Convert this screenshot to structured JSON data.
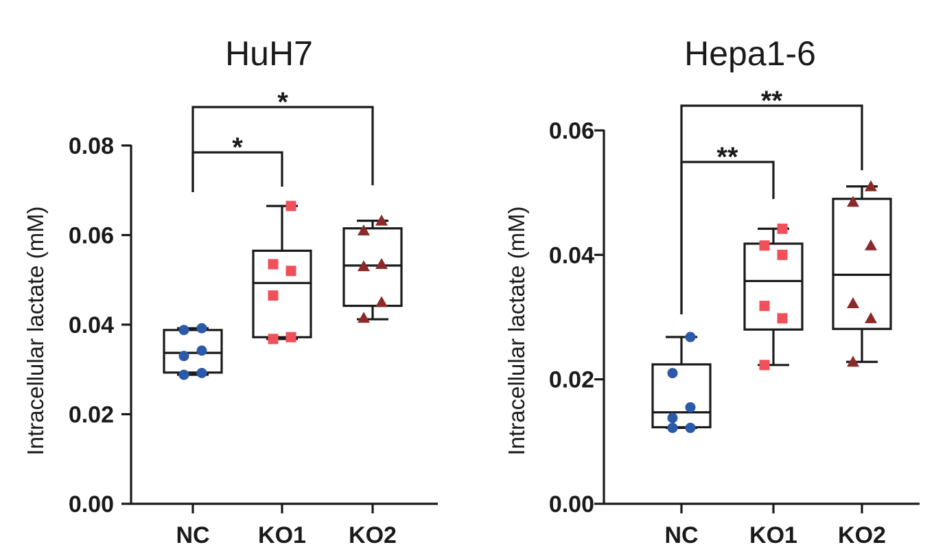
{
  "chart_data": [
    {
      "type": "box",
      "title": "HuH7",
      "ylabel": "Intracellular lactate (mM)",
      "xlabel": "",
      "ylim": [
        0,
        0.08
      ],
      "yticks": [
        "0.00",
        "0.02",
        "0.04",
        "0.06",
        "0.08"
      ],
      "categories": [
        "NC",
        "KO1",
        "KO2"
      ],
      "marker_colors": [
        "#2a5aa8",
        "#f0505a",
        "#8b2a2a"
      ],
      "marker_shapes": [
        "circle",
        "square",
        "triangle"
      ],
      "series": [
        {
          "category": "NC",
          "points": [
            0.0288,
            0.0292,
            0.033,
            0.0342,
            0.0388,
            0.0392
          ],
          "box": {
            "min": 0.0288,
            "q1": 0.0293,
            "median": 0.0337,
            "q3": 0.0388,
            "max": 0.0392
          }
        },
        {
          "category": "KO1",
          "points": [
            0.0368,
            0.0372,
            0.0465,
            0.052,
            0.0535,
            0.0665
          ],
          "box": {
            "min": 0.0368,
            "q1": 0.0372,
            "median": 0.0493,
            "q3": 0.0565,
            "max": 0.0665
          }
        },
        {
          "category": "KO2",
          "points": [
            0.0415,
            0.045,
            0.053,
            0.0535,
            0.061,
            0.0632
          ],
          "box": {
            "min": 0.0412,
            "q1": 0.0442,
            "median": 0.0532,
            "q3": 0.0615,
            "max": 0.0632
          }
        }
      ],
      "significance": [
        {
          "from": "NC",
          "to": "KO1",
          "label": "*"
        },
        {
          "from": "NC",
          "to": "KO2",
          "label": "*"
        }
      ]
    },
    {
      "type": "box",
      "title": "Hepa1-6",
      "ylabel": "Intracellular lactate (mM)",
      "xlabel": "",
      "ylim": [
        0,
        0.06
      ],
      "yticks": [
        "0.00",
        "0.02",
        "0.04",
        "0.06"
      ],
      "categories": [
        "NC",
        "KO1",
        "KO2"
      ],
      "marker_colors": [
        "#2a5aa8",
        "#f0505a",
        "#8b2a2a"
      ],
      "marker_shapes": [
        "circle",
        "square",
        "triangle"
      ],
      "series": [
        {
          "category": "NC",
          "points": [
            0.0122,
            0.0122,
            0.0138,
            0.0155,
            0.021,
            0.0268
          ],
          "box": {
            "min": 0.0122,
            "q1": 0.0123,
            "median": 0.0147,
            "q3": 0.0224,
            "max": 0.0268
          }
        },
        {
          "category": "KO1",
          "points": [
            0.0223,
            0.0298,
            0.0318,
            0.04,
            0.0415,
            0.0442
          ],
          "box": {
            "min": 0.0223,
            "q1": 0.028,
            "median": 0.0358,
            "q3": 0.0418,
            "max": 0.0442
          }
        },
        {
          "category": "KO2",
          "points": [
            0.0228,
            0.0298,
            0.0322,
            0.0415,
            0.0485,
            0.051
          ],
          "box": {
            "min": 0.0228,
            "q1": 0.0281,
            "median": 0.0368,
            "q3": 0.049,
            "max": 0.051
          }
        }
      ],
      "significance": [
        {
          "from": "NC",
          "to": "KO1",
          "label": "**"
        },
        {
          "from": "NC",
          "to": "KO2",
          "label": "**"
        }
      ]
    }
  ]
}
